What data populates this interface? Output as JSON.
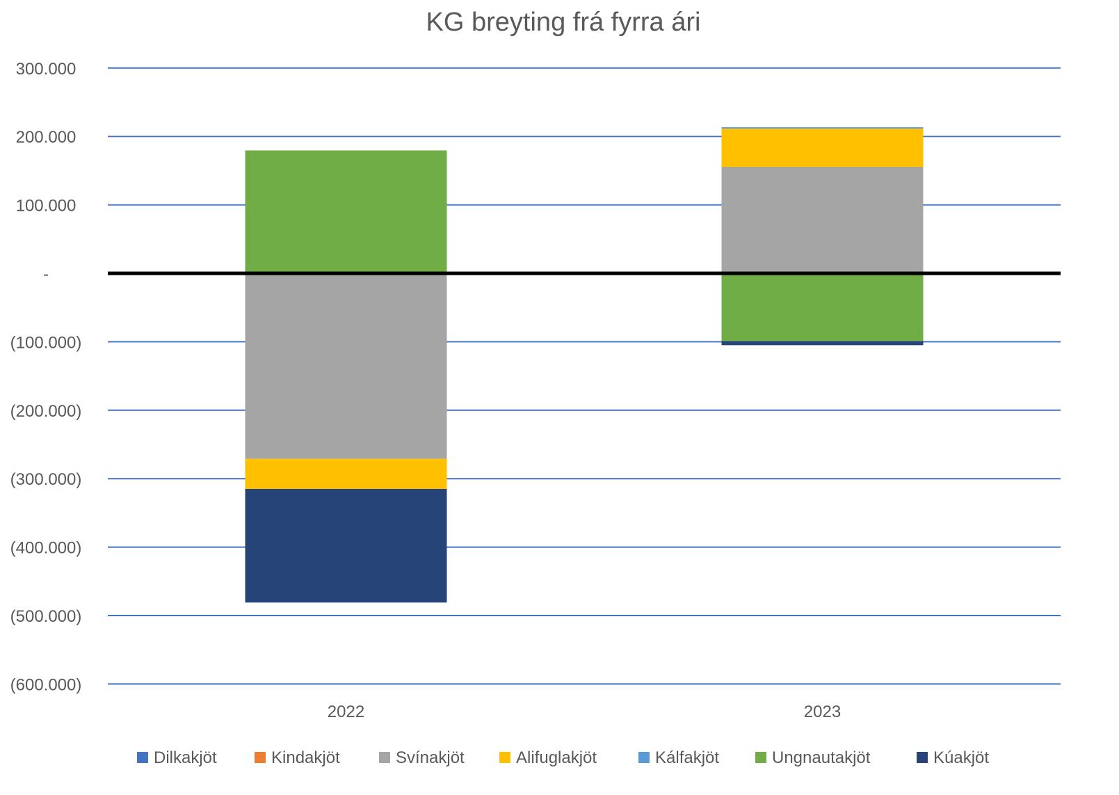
{
  "chart_data": {
    "type": "bar",
    "stacked": true,
    "title": "KG breyting frá fyrra ári",
    "xlabel": "",
    "ylabel": "",
    "ylim": [
      -600000,
      300000
    ],
    "yticks": [
      300000,
      200000,
      100000,
      0,
      -100000,
      -200000,
      -300000,
      -400000,
      -500000,
      -600000
    ],
    "ytick_labels": [
      "300.000",
      "200.000",
      "100.000",
      "-",
      "(100.000)",
      "(200.000)",
      "(300.000)",
      "(400.000)",
      "(500.000)",
      "(600.000)"
    ],
    "categories": [
      "2022",
      "2023"
    ],
    "grid": true,
    "legend_position": "bottom",
    "series": [
      {
        "name": "Dilkakjöt",
        "color": "#4472C4",
        "values": [
          0,
          0
        ]
      },
      {
        "name": "Kindakjöt",
        "color": "#ED7D31",
        "values": [
          0,
          1500
        ]
      },
      {
        "name": "Svínakjöt",
        "color": "#A5A5A5",
        "values": [
          -271000,
          154000
        ]
      },
      {
        "name": "Alifuglakjöt",
        "color": "#FFC000",
        "values": [
          -44000,
          56000
        ]
      },
      {
        "name": "Kálfakjöt",
        "color": "#5B9BD5",
        "values": [
          1500,
          2000
        ]
      },
      {
        "name": "Ungnautakjöt",
        "color": "#70AD47",
        "values": [
          178000,
          -99000
        ]
      },
      {
        "name": "Kúakjöt",
        "color": "#264478",
        "values": [
          -166000,
          -6000
        ]
      }
    ]
  }
}
